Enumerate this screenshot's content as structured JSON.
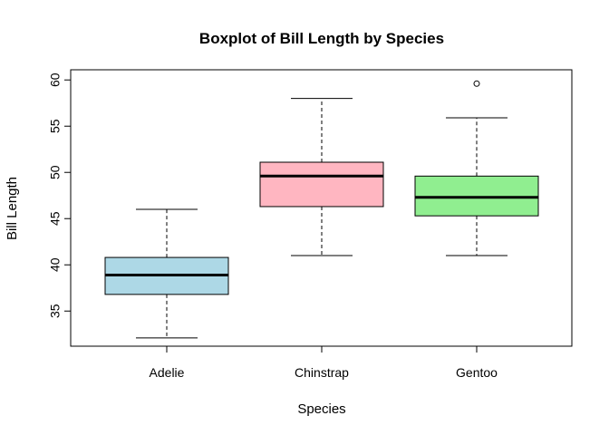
{
  "chart_data": {
    "type": "boxplot",
    "title": "Boxplot of Bill Length by Species",
    "xlabel": "Species",
    "ylabel": "Bill Length",
    "categories": [
      "Adelie",
      "Chinstrap",
      "Gentoo"
    ],
    "yticks": [
      35,
      40,
      45,
      50,
      55,
      60
    ],
    "ylim": [
      31.2,
      61.1
    ],
    "boxes": [
      {
        "category": "Adelie",
        "color": "#add8e6",
        "whisker_low": 32.1,
        "q1": 36.8,
        "median": 38.9,
        "q3": 40.8,
        "whisker_high": 46.0,
        "outliers": []
      },
      {
        "category": "Chinstrap",
        "color": "#ffb6c1",
        "whisker_low": 41.0,
        "q1": 46.3,
        "median": 49.6,
        "q3": 51.1,
        "whisker_high": 58.0,
        "outliers": []
      },
      {
        "category": "Gentoo",
        "color": "#90ee90",
        "whisker_low": 41.0,
        "q1": 45.3,
        "median": 47.3,
        "q3": 49.6,
        "whisker_high": 55.9,
        "outliers": [
          59.6
        ]
      }
    ]
  }
}
